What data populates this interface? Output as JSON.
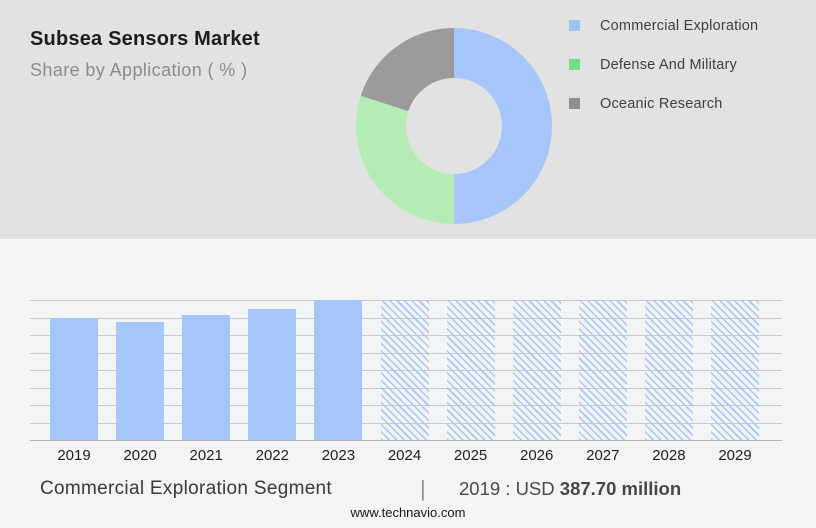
{
  "header": {
    "title": "Subsea Sensors Market",
    "subtitle": "Share by Application ( % )"
  },
  "legend": {
    "items": [
      {
        "label": "Commercial Exploration",
        "color": "#9ec3f5"
      },
      {
        "label": "Defense And Military",
        "color": "#74dd86"
      },
      {
        "label": "Oceanic Research",
        "color": "#8f8f8f"
      }
    ]
  },
  "chart_data": [
    {
      "type": "pie",
      "subtype": "donut",
      "title": "Share by Application ( % )",
      "labels": [
        "Commercial Exploration",
        "Defense And Military",
        "Oceanic Research"
      ],
      "values": [
        50,
        30,
        20
      ],
      "unit": "%",
      "colors": [
        "#a6c5f9",
        "#b5ecb4",
        "#9b9b9b"
      ],
      "start_angle_deg": 0,
      "direction": "clockwise",
      "legend_position": "right",
      "note": "no numeric labels shown on chart; values estimated from arc angles"
    },
    {
      "type": "bar",
      "categories": [
        "2019",
        "2020",
        "2021",
        "2022",
        "2023",
        "2024",
        "2025",
        "2026",
        "2027",
        "2028",
        "2029"
      ],
      "relative_heights": [
        0.874,
        0.843,
        0.891,
        0.938,
        1.0,
        1.0,
        1.0,
        1.0,
        1.0,
        1.0,
        1.0
      ],
      "values_usd_million_est": [
        387.7,
        374,
        395,
        416,
        444,
        null,
        null,
        null,
        null,
        null,
        null
      ],
      "solid_years": [
        "2019",
        "2020",
        "2021",
        "2022",
        "2023"
      ],
      "hatched_forecast_years": [
        "2024",
        "2025",
        "2026",
        "2027",
        "2028",
        "2029"
      ],
      "labeled_point": {
        "category": "2019",
        "text": "2019 : USD 387.70 million"
      },
      "ylim_est": [
        0,
        444
      ],
      "gridline_count": 9,
      "grid": true,
      "bar_color": "#a6c5f9",
      "xlabel": "",
      "ylabel": ""
    }
  ],
  "footer": {
    "segment_label": "Commercial Exploration Segment",
    "separator": "|",
    "value_prefix": "2019 : USD",
    "value_bold": "387.70 million",
    "website": "www.technavio.com"
  },
  "colors": {
    "top_bg": "#e2e2e2",
    "bottom_bg": "#f3f4f5",
    "donut_hole": "#e2e2e2",
    "grid": "#c9c9c9",
    "baseline": "#b0b0b0",
    "bar": "#a6c5f9"
  }
}
